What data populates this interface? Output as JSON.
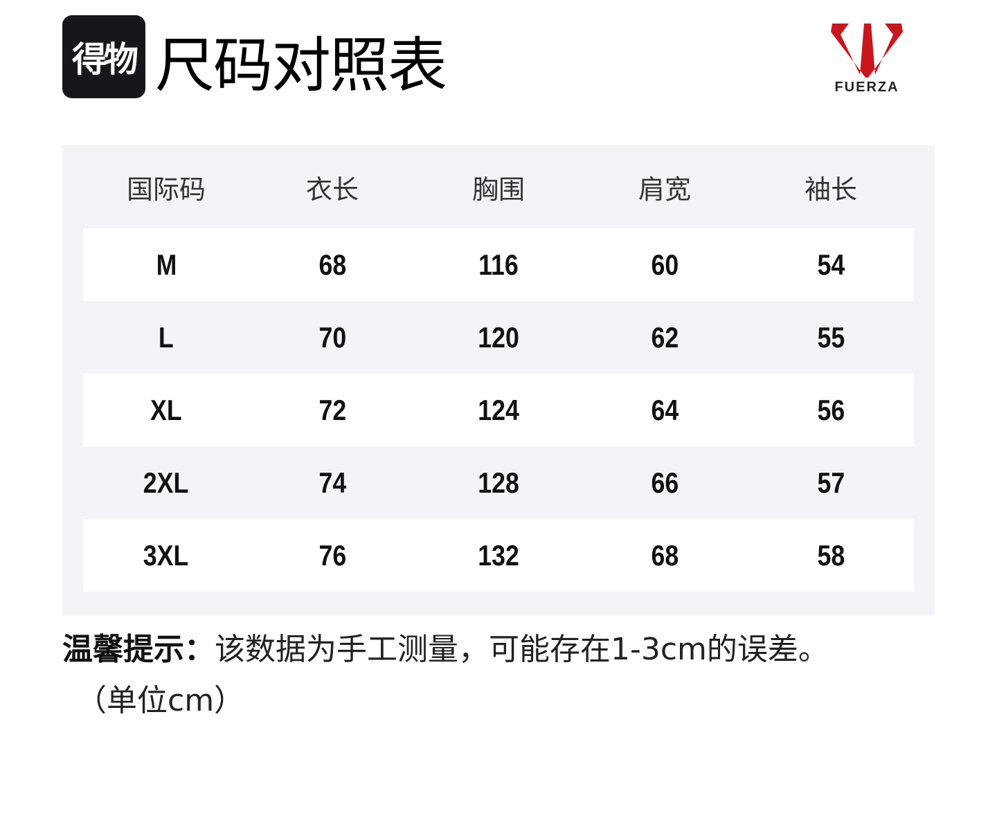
{
  "header": {
    "brand_badge": "得物",
    "title": "尺码对照表",
    "logo_text": "FUERZA",
    "logo_color": "#c8161d"
  },
  "table": {
    "columns": [
      "国际码",
      "衣长",
      "胸围",
      "肩宽",
      "袖长"
    ],
    "rows": [
      [
        "M",
        "68",
        "116",
        "60",
        "54"
      ],
      [
        "L",
        "70",
        "120",
        "62",
        "55"
      ],
      [
        "XL",
        "72",
        "124",
        "64",
        "56"
      ],
      [
        "2XL",
        "74",
        "128",
        "66",
        "57"
      ],
      [
        "3XL",
        "76",
        "132",
        "68",
        "58"
      ]
    ]
  },
  "note": {
    "label": "温馨提示：",
    "text": "该数据为手工测量，可能存在1-3cm的误差。",
    "unit": "（单位cm）"
  }
}
